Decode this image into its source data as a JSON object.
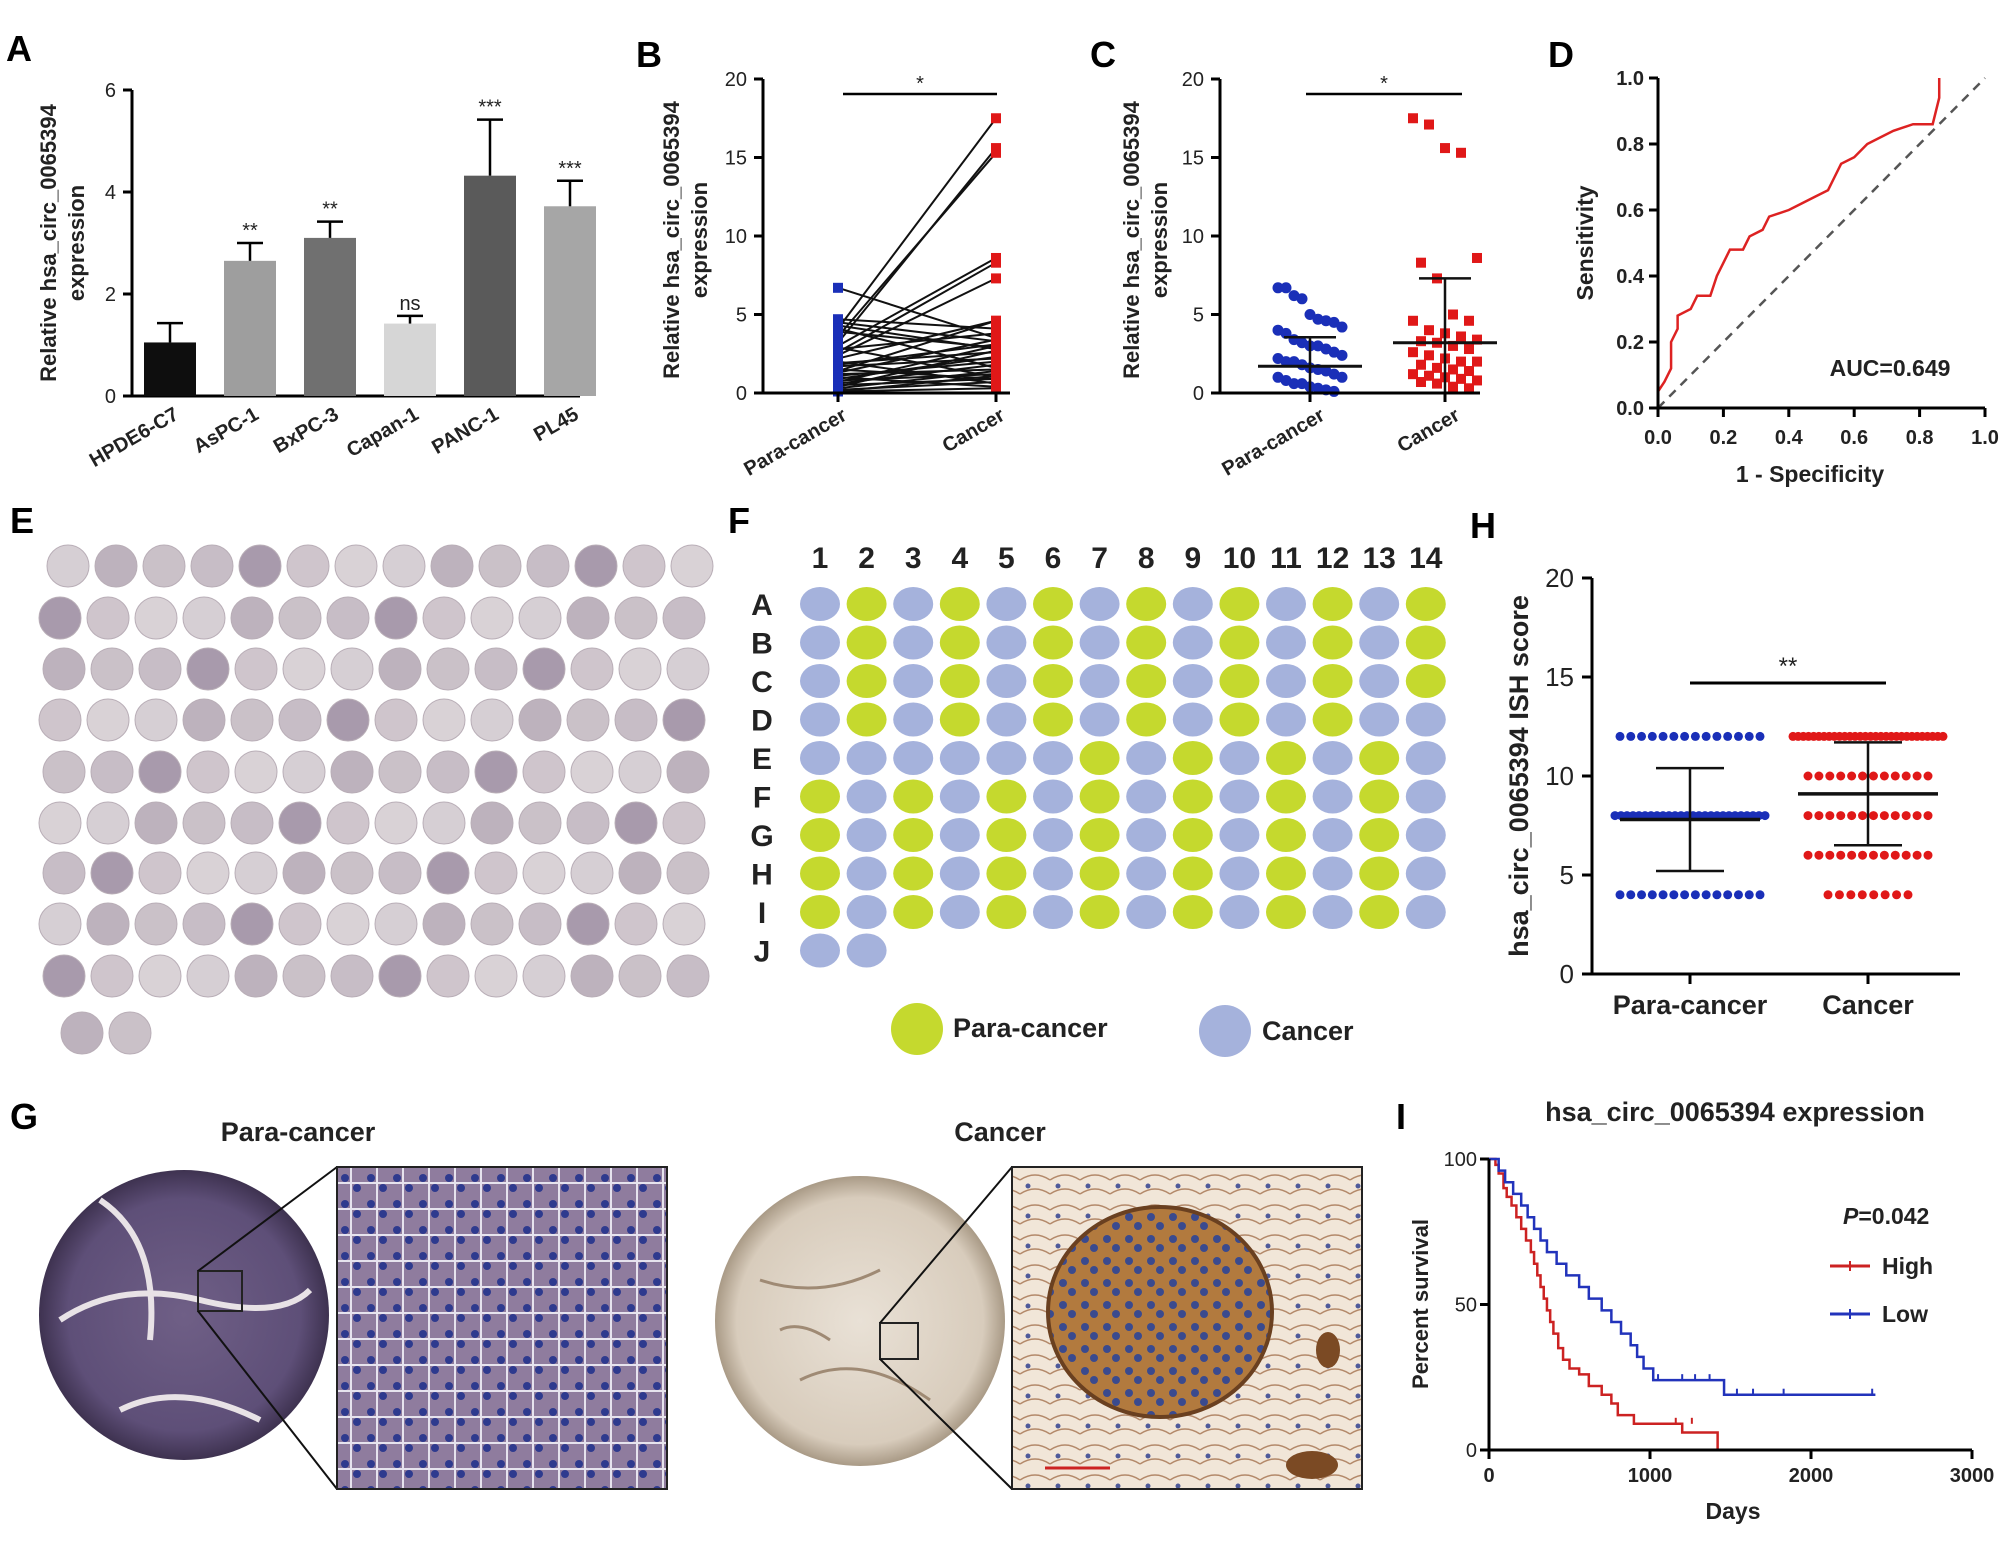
{
  "panels": {
    "A": "A",
    "B": "B",
    "C": "C",
    "D": "D",
    "E": "E",
    "F": "F",
    "G": "G",
    "H": "H",
    "I": "I"
  },
  "chart_data": [
    {
      "id": "A",
      "type": "bar",
      "ylabel_line1": "Relative hsa_circ_0065394",
      "ylabel_line2": "expression",
      "categories": [
        "HPDE6-C7",
        "AsPC-1",
        "BxPC-3",
        "Capan-1",
        "PANC-1",
        "PL45"
      ],
      "values": [
        1.05,
        2.65,
        3.1,
        1.42,
        4.32,
        3.72
      ],
      "errors": [
        0.38,
        0.35,
        0.32,
        0.15,
        1.1,
        0.5
      ],
      "colors": [
        "#0e0e0e",
        "#9e9e9e",
        "#707070",
        "#d6d6d6",
        "#5a5a5a",
        "#a6a6a6"
      ],
      "significance": [
        "",
        "**",
        "**",
        "ns",
        "***",
        "***"
      ],
      "ylim": [
        0,
        6
      ],
      "yticks": [
        "0",
        "2",
        "4",
        "6"
      ]
    },
    {
      "id": "B",
      "type": "paired-line",
      "ylabel_line1": "Relative hsa_circ_0065394",
      "ylabel_line2": "expression",
      "categories": [
        "Para-cancer",
        "Cancer"
      ],
      "pairs": [
        [
          6.7,
          3.5
        ],
        [
          4.7,
          4.1
        ],
        [
          4.5,
          3.3
        ],
        [
          4.3,
          2.8
        ],
        [
          4.1,
          17.5
        ],
        [
          4.1,
          1.6
        ],
        [
          3.9,
          2.9
        ],
        [
          3.6,
          15.3
        ],
        [
          3.2,
          15.6
        ],
        [
          3.0,
          8.6
        ],
        [
          2.9,
          1.0
        ],
        [
          2.8,
          3.8
        ],
        [
          2.6,
          8.3
        ],
        [
          2.4,
          7.3
        ],
        [
          2.2,
          4.6
        ],
        [
          2.0,
          0.6
        ],
        [
          1.9,
          2.6
        ],
        [
          1.8,
          3.1
        ],
        [
          1.7,
          2.2
        ],
        [
          1.5,
          0.9
        ],
        [
          1.4,
          4.6
        ],
        [
          1.3,
          3.4
        ],
        [
          1.2,
          1.5
        ],
        [
          1.1,
          2.0
        ],
        [
          1.0,
          0.4
        ],
        [
          0.9,
          2.3
        ],
        [
          0.8,
          1.2
        ],
        [
          0.7,
          3.0
        ],
        [
          0.6,
          1.8
        ],
        [
          0.5,
          0.9
        ],
        [
          0.4,
          2.7
        ],
        [
          0.3,
          1.4
        ],
        [
          0.2,
          0.7
        ],
        [
          0.1,
          1.1
        ],
        [
          0.1,
          0.3
        ]
      ],
      "significance": "*",
      "ylim": [
        0,
        20
      ],
      "yticks": [
        "0",
        "5",
        "10",
        "15",
        "20"
      ]
    },
    {
      "id": "C",
      "type": "scatter",
      "ylabel_line1": "Relative hsa_circ_0065394",
      "ylabel_line2": "expression",
      "categories": [
        "Para-cancer",
        "Cancer"
      ],
      "para_values": [
        6.7,
        6.7,
        6.2,
        6.0,
        5.0,
        4.7,
        4.6,
        4.5,
        4.2,
        4.0,
        3.8,
        3.4,
        3.2,
        3.0,
        3.0,
        2.8,
        2.6,
        2.4,
        2.2,
        2.0,
        2.0,
        1.8,
        1.6,
        1.5,
        1.4,
        1.2,
        1.0,
        1.0,
        0.8,
        0.6,
        0.6,
        0.4,
        0.3,
        0.2,
        0.1
      ],
      "cancer_values": [
        17.5,
        17.1,
        15.6,
        15.3,
        8.6,
        8.3,
        7.3,
        5.0,
        4.6,
        4.6,
        4.0,
        3.8,
        3.6,
        3.4,
        3.3,
        3.2,
        3.0,
        2.8,
        2.6,
        2.4,
        2.2,
        2.0,
        2.0,
        1.8,
        1.6,
        1.5,
        1.4,
        1.2,
        1.1,
        1.0,
        0.9,
        0.8,
        0.7,
        0.6,
        0.4,
        0.3
      ],
      "para_mean": 1.7,
      "para_sd": 1.85,
      "cancer_mean": 3.2,
      "cancer_sd": 4.1,
      "significance": "*",
      "ylim": [
        0,
        20
      ],
      "yticks": [
        "0",
        "5",
        "10",
        "15",
        "20"
      ]
    },
    {
      "id": "D",
      "type": "line",
      "xlabel": "1 - Specificity",
      "ylabel": "Sensitivity",
      "roc": [
        [
          0,
          0
        ],
        [
          0,
          0.05
        ],
        [
          0.02,
          0.08
        ],
        [
          0.04,
          0.12
        ],
        [
          0.04,
          0.2
        ],
        [
          0.06,
          0.24
        ],
        [
          0.06,
          0.28
        ],
        [
          0.1,
          0.3
        ],
        [
          0.12,
          0.34
        ],
        [
          0.16,
          0.34
        ],
        [
          0.18,
          0.4
        ],
        [
          0.2,
          0.44
        ],
        [
          0.22,
          0.48
        ],
        [
          0.26,
          0.48
        ],
        [
          0.28,
          0.52
        ],
        [
          0.32,
          0.54
        ],
        [
          0.34,
          0.58
        ],
        [
          0.4,
          0.6
        ],
        [
          0.44,
          0.62
        ],
        [
          0.48,
          0.64
        ],
        [
          0.52,
          0.66
        ],
        [
          0.54,
          0.7
        ],
        [
          0.56,
          0.74
        ],
        [
          0.6,
          0.76
        ],
        [
          0.64,
          0.8
        ],
        [
          0.68,
          0.82
        ],
        [
          0.72,
          0.84
        ],
        [
          0.78,
          0.86
        ],
        [
          0.84,
          0.86
        ],
        [
          0.86,
          0.94
        ],
        [
          0.86,
          1.0
        ]
      ],
      "annotation": "AUC=0.649",
      "xlim": [
        0,
        1
      ],
      "ylim": [
        0,
        1
      ],
      "xticks": [
        "0.0",
        "0.2",
        "0.4",
        "0.6",
        "0.8",
        "1.0"
      ],
      "yticks": [
        "0.0",
        "0.2",
        "0.4",
        "0.6",
        "0.8",
        "1.0"
      ]
    },
    {
      "id": "H",
      "type": "scatter",
      "ylabel": "hsa_circ_0065394 ISH score",
      "categories": [
        "Para-cancer",
        "Cancer"
      ],
      "para_levels": [
        [
          12,
          14
        ],
        [
          8,
          26
        ],
        [
          4,
          14
        ]
      ],
      "cancer_levels": [
        [
          12,
          30
        ],
        [
          10,
          12
        ],
        [
          8,
          12
        ],
        [
          6,
          12
        ],
        [
          4,
          8
        ]
      ],
      "para_mean": 7.8,
      "para_sd": 2.6,
      "cancer_mean": 9.1,
      "cancer_sd": 2.6,
      "significance": "**",
      "ylim": [
        0,
        20
      ],
      "yticks": [
        "0",
        "5",
        "10",
        "15",
        "20"
      ]
    },
    {
      "id": "I",
      "type": "line",
      "title": "hsa_circ_0065394 expression",
      "xlabel": "Days",
      "ylabel": "Percent survival",
      "series": [
        {
          "name": "High",
          "color": "#cc2222",
          "steps": [
            [
              0,
              100
            ],
            [
              40,
              98
            ],
            [
              60,
              95
            ],
            [
              90,
              90
            ],
            [
              110,
              87
            ],
            [
              140,
              84
            ],
            [
              170,
              80
            ],
            [
              200,
              76
            ],
            [
              230,
              72
            ],
            [
              260,
              68
            ],
            [
              280,
              64
            ],
            [
              300,
              60
            ],
            [
              320,
              56
            ],
            [
              340,
              52
            ],
            [
              360,
              48
            ],
            [
              380,
              44
            ],
            [
              400,
              40
            ],
            [
              430,
              35
            ],
            [
              460,
              31
            ],
            [
              500,
              28
            ],
            [
              560,
              26
            ],
            [
              620,
              22
            ],
            [
              700,
              19
            ],
            [
              760,
              16
            ],
            [
              800,
              12
            ],
            [
              900,
              9
            ],
            [
              1150,
              9
            ],
            [
              1200,
              6
            ],
            [
              1420,
              6
            ],
            [
              1420,
              0
            ]
          ]
        },
        {
          "name": "Low",
          "color": "#2233bb",
          "steps": [
            [
              0,
              100
            ],
            [
              60,
              96
            ],
            [
              100,
              92
            ],
            [
              150,
              88
            ],
            [
              200,
              84
            ],
            [
              240,
              80
            ],
            [
              280,
              76
            ],
            [
              320,
              72
            ],
            [
              360,
              68
            ],
            [
              420,
              64
            ],
            [
              480,
              60
            ],
            [
              560,
              56
            ],
            [
              620,
              52
            ],
            [
              700,
              48
            ],
            [
              760,
              44
            ],
            [
              820,
              40
            ],
            [
              880,
              36
            ],
            [
              920,
              32
            ],
            [
              960,
              28
            ],
            [
              1020,
              24
            ],
            [
              1460,
              24
            ],
            [
              1460,
              19
            ],
            [
              2400,
              19
            ]
          ]
        }
      ],
      "p_label": "P",
      "p_value": "=0.042",
      "xlim": [
        0,
        3000
      ],
      "ylim": [
        0,
        100
      ],
      "xticks": [
        "0",
        "1000",
        "2000",
        "3000"
      ],
      "yticks": [
        "0",
        "50",
        "100"
      ]
    }
  ],
  "panelF": {
    "col_labels": [
      "1",
      "2",
      "3",
      "4",
      "5",
      "6",
      "7",
      "8",
      "9",
      "10",
      "11",
      "12",
      "13",
      "14"
    ],
    "row_labels": [
      "A",
      "B",
      "C",
      "D",
      "E",
      "F",
      "G",
      "H",
      "I",
      "J"
    ],
    "grid": [
      "CPCPCPCPCPCPCP",
      "CPCPCPCPCPCPCP",
      "CPCPCPCPCPCPCP",
      "CPCPCPCPCPCPCC",
      "CCCCCCPCPCPCPC",
      "PCPCPCPCPCPCPC",
      "PCPCPCPCPCPCPC",
      "PCPCPCPCPCPCPC",
      "PCPCPCPCPCPCPC",
      "CC"
    ],
    "legend": [
      {
        "label": "Para-cancer",
        "color": "#c5d92e"
      },
      {
        "label": "Cancer",
        "color": "#a5b2dc"
      }
    ]
  },
  "panelG": {
    "left_label": "Para-cancer",
    "right_label": "Cancer"
  }
}
